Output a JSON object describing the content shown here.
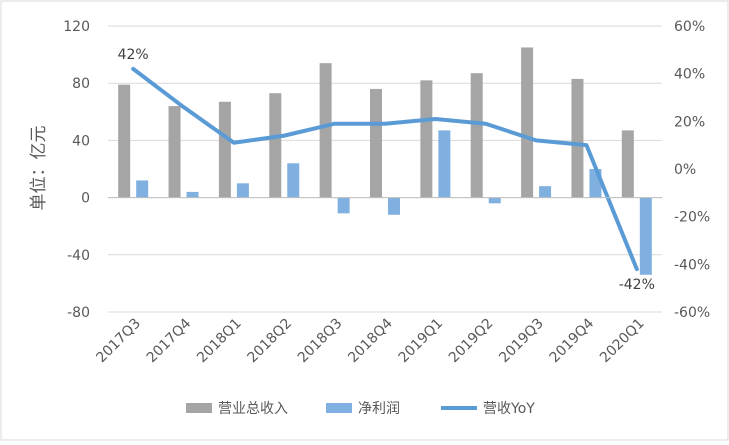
{
  "chart_data": {
    "type": "bar",
    "categories": [
      "2017Q3",
      "2017Q4",
      "2018Q1",
      "2018Q2",
      "2018Q3",
      "2018Q4",
      "2019Q1",
      "2019Q2",
      "2019Q3",
      "2019Q4",
      "2020Q1"
    ],
    "ylabel": "单位：亿元",
    "ylim": [
      -80,
      120
    ],
    "yticks": [
      "-80",
      "-40",
      "0",
      "40",
      "80",
      "120"
    ],
    "y2lim": [
      -60,
      60
    ],
    "y2ticks": [
      "-60%",
      "-40%",
      "-20%",
      "0%",
      "20%",
      "40%",
      "60%"
    ],
    "legend_position": "bottom",
    "series": [
      {
        "name": "营业总收入",
        "type": "bar",
        "axis": "left",
        "color": "#a5a5a5",
        "values": [
          79,
          64,
          67,
          73,
          94,
          76,
          82,
          87,
          105,
          83,
          47
        ]
      },
      {
        "name": "净利润",
        "type": "bar",
        "axis": "left",
        "color": "#7fb0e0",
        "values": [
          12,
          4,
          10,
          24,
          -11,
          -12,
          47,
          -4,
          8,
          20,
          -54
        ]
      },
      {
        "name": "营收YoY",
        "type": "line",
        "axis": "right",
        "color": "#5b9bd5",
        "values": [
          42,
          26,
          11,
          14,
          19,
          19,
          21,
          19,
          12,
          10,
          -42
        ]
      }
    ],
    "annotations": [
      {
        "series": "营收YoY",
        "index": 0,
        "text": "42%"
      },
      {
        "series": "营收YoY",
        "index": 10,
        "text": "-42%"
      }
    ]
  }
}
